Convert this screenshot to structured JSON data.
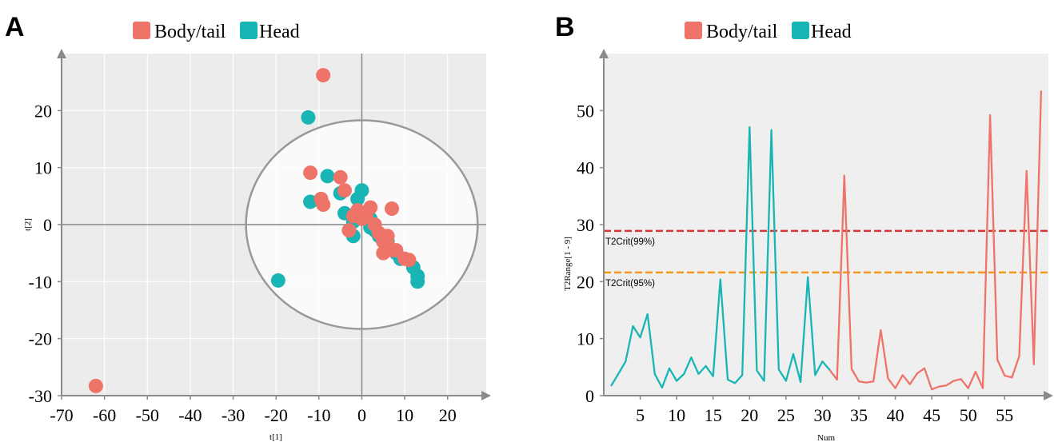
{
  "chart_data": [
    {
      "panel": "A",
      "type": "scatter",
      "legend": [
        {
          "label": "Body/tail",
          "color": "#EE7469"
        },
        {
          "label": "Head",
          "color": "#19B5B5"
        }
      ],
      "xlabel": "t[1]",
      "ylabel": "t[2]",
      "xlim": [
        -70,
        29
      ],
      "ylim": [
        -30,
        30
      ],
      "xticks": [
        -70,
        -60,
        -50,
        -40,
        -30,
        -20,
        -10,
        0,
        10,
        20
      ],
      "yticks": [
        -30,
        -20,
        -10,
        0,
        10,
        20
      ],
      "grid": true,
      "ellipse": {
        "center": [
          0,
          0
        ],
        "rx": 27,
        "ry": 18.3
      },
      "series": [
        {
          "name": "Body/tail",
          "color": "#EE7469",
          "points": [
            [
              -9,
              26.2
            ],
            [
              -62,
              -28.3
            ],
            [
              -12,
              9.1
            ],
            [
              -5,
              8.3
            ],
            [
              -4,
              6
            ],
            [
              -9.5,
              4.5
            ],
            [
              -9,
              3.5
            ],
            [
              -2,
              1.5
            ],
            [
              -1,
              2.5
            ],
            [
              0,
              1
            ],
            [
              1,
              1.5
            ],
            [
              2,
              3
            ],
            [
              3,
              0
            ],
            [
              -3,
              -1
            ],
            [
              4,
              -1.5
            ],
            [
              5,
              -2
            ],
            [
              6,
              -2
            ],
            [
              7,
              2.8
            ],
            [
              5,
              -3
            ],
            [
              6,
              -3.5
            ],
            [
              7,
              -4.5
            ],
            [
              5,
              -5
            ],
            [
              8,
              -4.5
            ],
            [
              10,
              -6
            ],
            [
              11,
              -6.2
            ]
          ]
        },
        {
          "name": "Head",
          "color": "#19B5B5",
          "points": [
            [
              -12.5,
              18.8
            ],
            [
              -8,
              8.5
            ],
            [
              -12,
              4
            ],
            [
              -5,
              5.5
            ],
            [
              0,
              6
            ],
            [
              -1,
              4.5
            ],
            [
              -4,
              2
            ],
            [
              -2,
              0.5
            ],
            [
              1,
              2
            ],
            [
              2,
              1
            ],
            [
              3,
              -1
            ],
            [
              4,
              -2
            ],
            [
              6,
              -3
            ],
            [
              -2,
              -2
            ],
            [
              2,
              -0.5
            ],
            [
              8,
              -5
            ],
            [
              9,
              -6
            ],
            [
              12,
              -7.5
            ],
            [
              13,
              -9
            ],
            [
              13,
              -10
            ],
            [
              -19.5,
              -9.8
            ]
          ]
        }
      ]
    },
    {
      "panel": "B",
      "type": "line",
      "legend": [
        {
          "label": "Body/tail",
          "color": "#EE7469"
        },
        {
          "label": "Head",
          "color": "#19B5B5"
        }
      ],
      "xlabel": "Num",
      "ylabel": "T2Range[1 - 9]",
      "xlim": [
        0,
        61
      ],
      "ylim": [
        0,
        60
      ],
      "xticks": [
        5,
        10,
        15,
        20,
        25,
        30,
        35,
        40,
        45,
        50,
        55
      ],
      "yticks": [
        0,
        10,
        20,
        30,
        40,
        50
      ],
      "thresholds": [
        {
          "label": "T2Crit(99%)",
          "value": 28.9,
          "color": "#D23A3A"
        },
        {
          "label": "T2Crit(95%)",
          "value": 21.6,
          "color": "#F29B19"
        }
      ],
      "series": [
        {
          "name": "Head",
          "color": "#19B5B5",
          "x": [
            1,
            2,
            3,
            4,
            5,
            6,
            7,
            8,
            9,
            10,
            11,
            12,
            13,
            14,
            15,
            16,
            17,
            18,
            19,
            20,
            21,
            22,
            23,
            24,
            25,
            26,
            27,
            28,
            29,
            30,
            31
          ],
          "y": [
            1.7,
            3.8,
            6,
            12.2,
            10.2,
            14.3,
            3.8,
            1.4,
            4.8,
            2.6,
            3.8,
            6.7,
            3.8,
            5.2,
            3.4,
            20.4,
            2.8,
            2.2,
            3.6,
            47.1,
            4.4,
            2.6,
            46.6,
            4.6,
            2.6,
            7.3,
            2.4,
            20.8,
            3.6,
            6,
            4.5
          ]
        },
        {
          "name": "Body/tail",
          "color": "#EE7469",
          "x": [
            31,
            32,
            33,
            34,
            35,
            36,
            37,
            38,
            39,
            40,
            41,
            42,
            43,
            44,
            45,
            46,
            47,
            48,
            49,
            50,
            51,
            52,
            53,
            54,
            55,
            56,
            57,
            58,
            59,
            60
          ],
          "y": [
            4.5,
            2.8,
            38.6,
            4.7,
            2.5,
            2.3,
            2.5,
            11.5,
            3,
            1.3,
            3.6,
            2,
            3.9,
            4.8,
            1.1,
            1.6,
            1.8,
            2.6,
            2.9,
            1.3,
            4.2,
            1.3,
            49.2,
            6.3,
            3.5,
            3.2,
            6.9,
            39.4,
            5.5,
            53.5
          ]
        }
      ]
    }
  ]
}
